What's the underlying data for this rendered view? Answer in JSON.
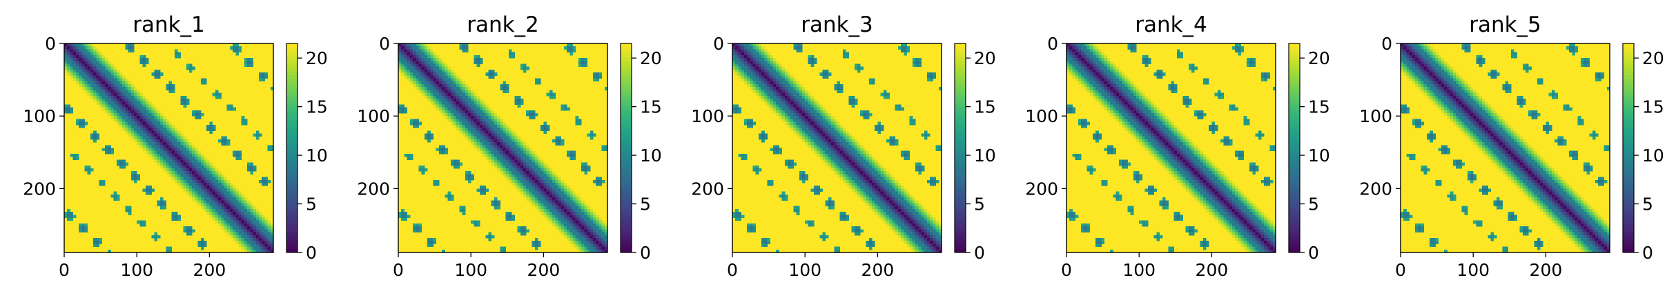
{
  "colormap": [
    "#440154",
    "#482878",
    "#3e4989",
    "#31688e",
    "#26828e",
    "#1f9e89",
    "#35b779",
    "#6ece58",
    "#b5de2b",
    "#fde725"
  ],
  "chart_data": [
    {
      "type": "heatmap",
      "title": "rank_1",
      "xlim": [
        0,
        288
      ],
      "ylim": [
        0,
        288
      ],
      "xticks": [
        0,
        100,
        200
      ],
      "yticks": [
        0,
        100,
        200
      ],
      "colorbar": {
        "min": 0,
        "max": 21.5,
        "ticks": [
          0,
          5,
          10,
          15,
          20
        ]
      }
    },
    {
      "type": "heatmap",
      "title": "rank_2",
      "xlim": [
        0,
        288
      ],
      "ylim": [
        0,
        288
      ],
      "xticks": [
        0,
        100,
        200
      ],
      "yticks": [
        0,
        100,
        200
      ],
      "colorbar": {
        "min": 0,
        "max": 21.5,
        "ticks": [
          0,
          5,
          10,
          15,
          20
        ]
      }
    },
    {
      "type": "heatmap",
      "title": "rank_3",
      "xlim": [
        0,
        288
      ],
      "ylim": [
        0,
        288
      ],
      "xticks": [
        0,
        100,
        200
      ],
      "yticks": [
        0,
        100,
        200
      ],
      "colorbar": {
        "min": 0,
        "max": 21.5,
        "ticks": [
          0,
          5,
          10,
          15,
          20
        ]
      }
    },
    {
      "type": "heatmap",
      "title": "rank_4",
      "xlim": [
        0,
        288
      ],
      "ylim": [
        0,
        288
      ],
      "xticks": [
        0,
        100,
        200
      ],
      "yticks": [
        0,
        100,
        200
      ],
      "colorbar": {
        "min": 0,
        "max": 21.5,
        "ticks": [
          0,
          5,
          10,
          15,
          20
        ]
      }
    },
    {
      "type": "heatmap",
      "title": "rank_5",
      "xlim": [
        0,
        288
      ],
      "ylim": [
        0,
        288
      ],
      "xticks": [
        0,
        100,
        200
      ],
      "yticks": [
        0,
        100,
        200
      ],
      "colorbar": {
        "min": 0,
        "max": 21.5,
        "ticks": [
          0,
          5,
          10,
          15,
          20
        ]
      }
    }
  ]
}
